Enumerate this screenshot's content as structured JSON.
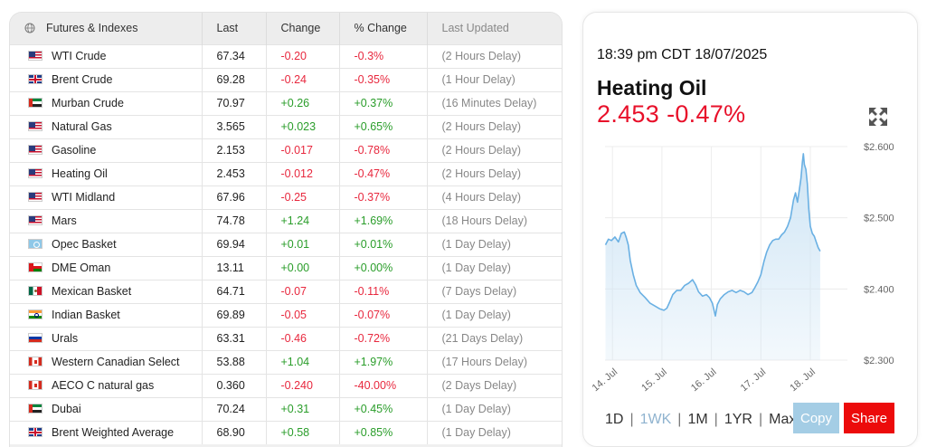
{
  "table": {
    "headers": {
      "instrument": "Futures & Indexes",
      "last": "Last",
      "change": "Change",
      "pct_change": "% Change",
      "last_updated": "Last Updated"
    },
    "rows": [
      {
        "flag": "us",
        "name": "WTI Crude",
        "last": "67.34",
        "change": "-0.20",
        "pct": "-0.3%",
        "updated": "(2 Hours Delay)",
        "dir": "neg"
      },
      {
        "flag": "uk",
        "name": "Brent Crude",
        "last": "69.28",
        "change": "-0.24",
        "pct": "-0.35%",
        "updated": "(1 Hour Delay)",
        "dir": "neg"
      },
      {
        "flag": "ae",
        "name": "Murban Crude",
        "last": "70.97",
        "change": "+0.26",
        "pct": "+0.37%",
        "updated": "(16 Minutes Delay)",
        "dir": "pos"
      },
      {
        "flag": "us",
        "name": "Natural Gas",
        "last": "3.565",
        "change": "+0.023",
        "pct": "+0.65%",
        "updated": "(2 Hours Delay)",
        "dir": "pos"
      },
      {
        "flag": "us",
        "name": "Gasoline",
        "last": "2.153",
        "change": "-0.017",
        "pct": "-0.78%",
        "updated": "(2 Hours Delay)",
        "dir": "neg"
      },
      {
        "flag": "us",
        "name": "Heating Oil",
        "last": "2.453",
        "change": "-0.012",
        "pct": "-0.47%",
        "updated": "(2 Hours Delay)",
        "dir": "neg"
      },
      {
        "flag": "us",
        "name": "WTI Midland",
        "last": "67.96",
        "change": "-0.25",
        "pct": "-0.37%",
        "updated": "(4 Hours Delay)",
        "dir": "neg"
      },
      {
        "flag": "us",
        "name": "Mars",
        "last": "74.78",
        "change": "+1.24",
        "pct": "+1.69%",
        "updated": "(18 Hours Delay)",
        "dir": "pos"
      },
      {
        "flag": "opec",
        "name": "Opec Basket",
        "last": "69.94",
        "change": "+0.01",
        "pct": "+0.01%",
        "updated": "(1 Day Delay)",
        "dir": "pos"
      },
      {
        "flag": "om",
        "name": "DME Oman",
        "last": "13.11",
        "change": "+0.00",
        "pct": "+0.00%",
        "updated": "(1 Day Delay)",
        "dir": "pos"
      },
      {
        "flag": "mx",
        "name": "Mexican Basket",
        "last": "64.71",
        "change": "-0.07",
        "pct": "-0.11%",
        "updated": "(7 Days Delay)",
        "dir": "neg"
      },
      {
        "flag": "in",
        "name": "Indian Basket",
        "last": "69.89",
        "change": "-0.05",
        "pct": "-0.07%",
        "updated": "(1 Day Delay)",
        "dir": "neg"
      },
      {
        "flag": "ru",
        "name": "Urals",
        "last": "63.31",
        "change": "-0.46",
        "pct": "-0.72%",
        "updated": "(21 Days Delay)",
        "dir": "neg"
      },
      {
        "flag": "ca",
        "name": "Western Canadian Select",
        "last": "53.88",
        "change": "+1.04",
        "pct": "+1.97%",
        "updated": "(17 Hours Delay)",
        "dir": "pos"
      },
      {
        "flag": "ca",
        "name": "AECO C natural gas",
        "last": "0.360",
        "change": "-0.240",
        "pct": "-40.00%",
        "updated": "(2 Days Delay)",
        "dir": "neg"
      },
      {
        "flag": "ae",
        "name": "Dubai",
        "last": "70.24",
        "change": "+0.31",
        "pct": "+0.45%",
        "updated": "(1 Day Delay)",
        "dir": "pos"
      },
      {
        "flag": "uk",
        "name": "Brent Weighted Average",
        "last": "68.90",
        "change": "+0.58",
        "pct": "+0.85%",
        "updated": "(1 Day Delay)",
        "dir": "pos"
      }
    ]
  },
  "chart_panel": {
    "timestamp": "18:39 pm CDT 18/07/2025",
    "instrument": "Heating Oil",
    "price": "2.453",
    "change_pct": "-0.47%",
    "ranges": [
      "1D",
      "1WK",
      "1M",
      "1YR",
      "Max"
    ],
    "active_range": "1WK",
    "copy_label": "Copy",
    "share_label": "Share"
  },
  "colors": {
    "positive": "#2a9d2a",
    "negative": "#e8283e",
    "price_red": "#e8102a",
    "chart_line": "#6ab0e3",
    "chart_fill": "#cfe5f5",
    "copy_button": "#a4cde5",
    "share_button": "#ec0b0b"
  },
  "chart_data": {
    "type": "area",
    "title": "",
    "xlabel": "",
    "ylabel": "",
    "x_ticks": [
      "14. Jul",
      "15. Jul",
      "16. Jul",
      "17. Jul",
      "18. Jul"
    ],
    "y_ticks": [
      "$2.600",
      "$2.500",
      "$2.400",
      "$2.300"
    ],
    "ylim": [
      2.3,
      2.6
    ],
    "xlim": [
      13.85,
      18.75
    ],
    "series": [
      {
        "values": [
          [
            13.86,
            2.462
          ],
          [
            13.92,
            2.47
          ],
          [
            13.98,
            2.468
          ],
          [
            14.05,
            2.473
          ],
          [
            14.12,
            2.466
          ],
          [
            14.18,
            2.478
          ],
          [
            14.24,
            2.48
          ],
          [
            14.28,
            2.472
          ],
          [
            14.32,
            2.462
          ],
          [
            14.36,
            2.44
          ],
          [
            14.42,
            2.42
          ],
          [
            14.48,
            2.405
          ],
          [
            14.56,
            2.395
          ],
          [
            14.66,
            2.388
          ],
          [
            14.76,
            2.38
          ],
          [
            14.86,
            2.376
          ],
          [
            14.96,
            2.372
          ],
          [
            15.04,
            2.37
          ],
          [
            15.1,
            2.373
          ],
          [
            15.16,
            2.382
          ],
          [
            15.22,
            2.392
          ],
          [
            15.3,
            2.398
          ],
          [
            15.38,
            2.398
          ],
          [
            15.46,
            2.405
          ],
          [
            15.54,
            2.408
          ],
          [
            15.62,
            2.413
          ],
          [
            15.68,
            2.406
          ],
          [
            15.74,
            2.396
          ],
          [
            15.82,
            2.39
          ],
          [
            15.9,
            2.392
          ],
          [
            15.96,
            2.388
          ],
          [
            16.02,
            2.38
          ],
          [
            16.08,
            2.362
          ],
          [
            16.12,
            2.378
          ],
          [
            16.18,
            2.386
          ],
          [
            16.26,
            2.392
          ],
          [
            16.34,
            2.396
          ],
          [
            16.42,
            2.398
          ],
          [
            16.5,
            2.395
          ],
          [
            16.58,
            2.398
          ],
          [
            16.66,
            2.396
          ],
          [
            16.74,
            2.392
          ],
          [
            16.82,
            2.395
          ],
          [
            16.88,
            2.402
          ],
          [
            16.94,
            2.41
          ],
          [
            17.0,
            2.42
          ],
          [
            17.06,
            2.438
          ],
          [
            17.12,
            2.452
          ],
          [
            17.18,
            2.462
          ],
          [
            17.24,
            2.468
          ],
          [
            17.3,
            2.47
          ],
          [
            17.36,
            2.47
          ],
          [
            17.42,
            2.476
          ],
          [
            17.48,
            2.48
          ],
          [
            17.54,
            2.488
          ],
          [
            17.6,
            2.5
          ],
          [
            17.66,
            2.525
          ],
          [
            17.7,
            2.535
          ],
          [
            17.74,
            2.522
          ],
          [
            17.78,
            2.54
          ],
          [
            17.81,
            2.555
          ],
          [
            17.84,
            2.578
          ],
          [
            17.86,
            2.59
          ],
          [
            17.88,
            2.575
          ],
          [
            17.91,
            2.568
          ],
          [
            17.94,
            2.548
          ],
          [
            17.97,
            2.512
          ],
          [
            18.0,
            2.488
          ],
          [
            18.04,
            2.478
          ],
          [
            18.08,
            2.474
          ],
          [
            18.12,
            2.466
          ],
          [
            18.16,
            2.458
          ],
          [
            18.2,
            2.453
          ]
        ]
      }
    ],
    "grid": true,
    "legend": "none"
  }
}
